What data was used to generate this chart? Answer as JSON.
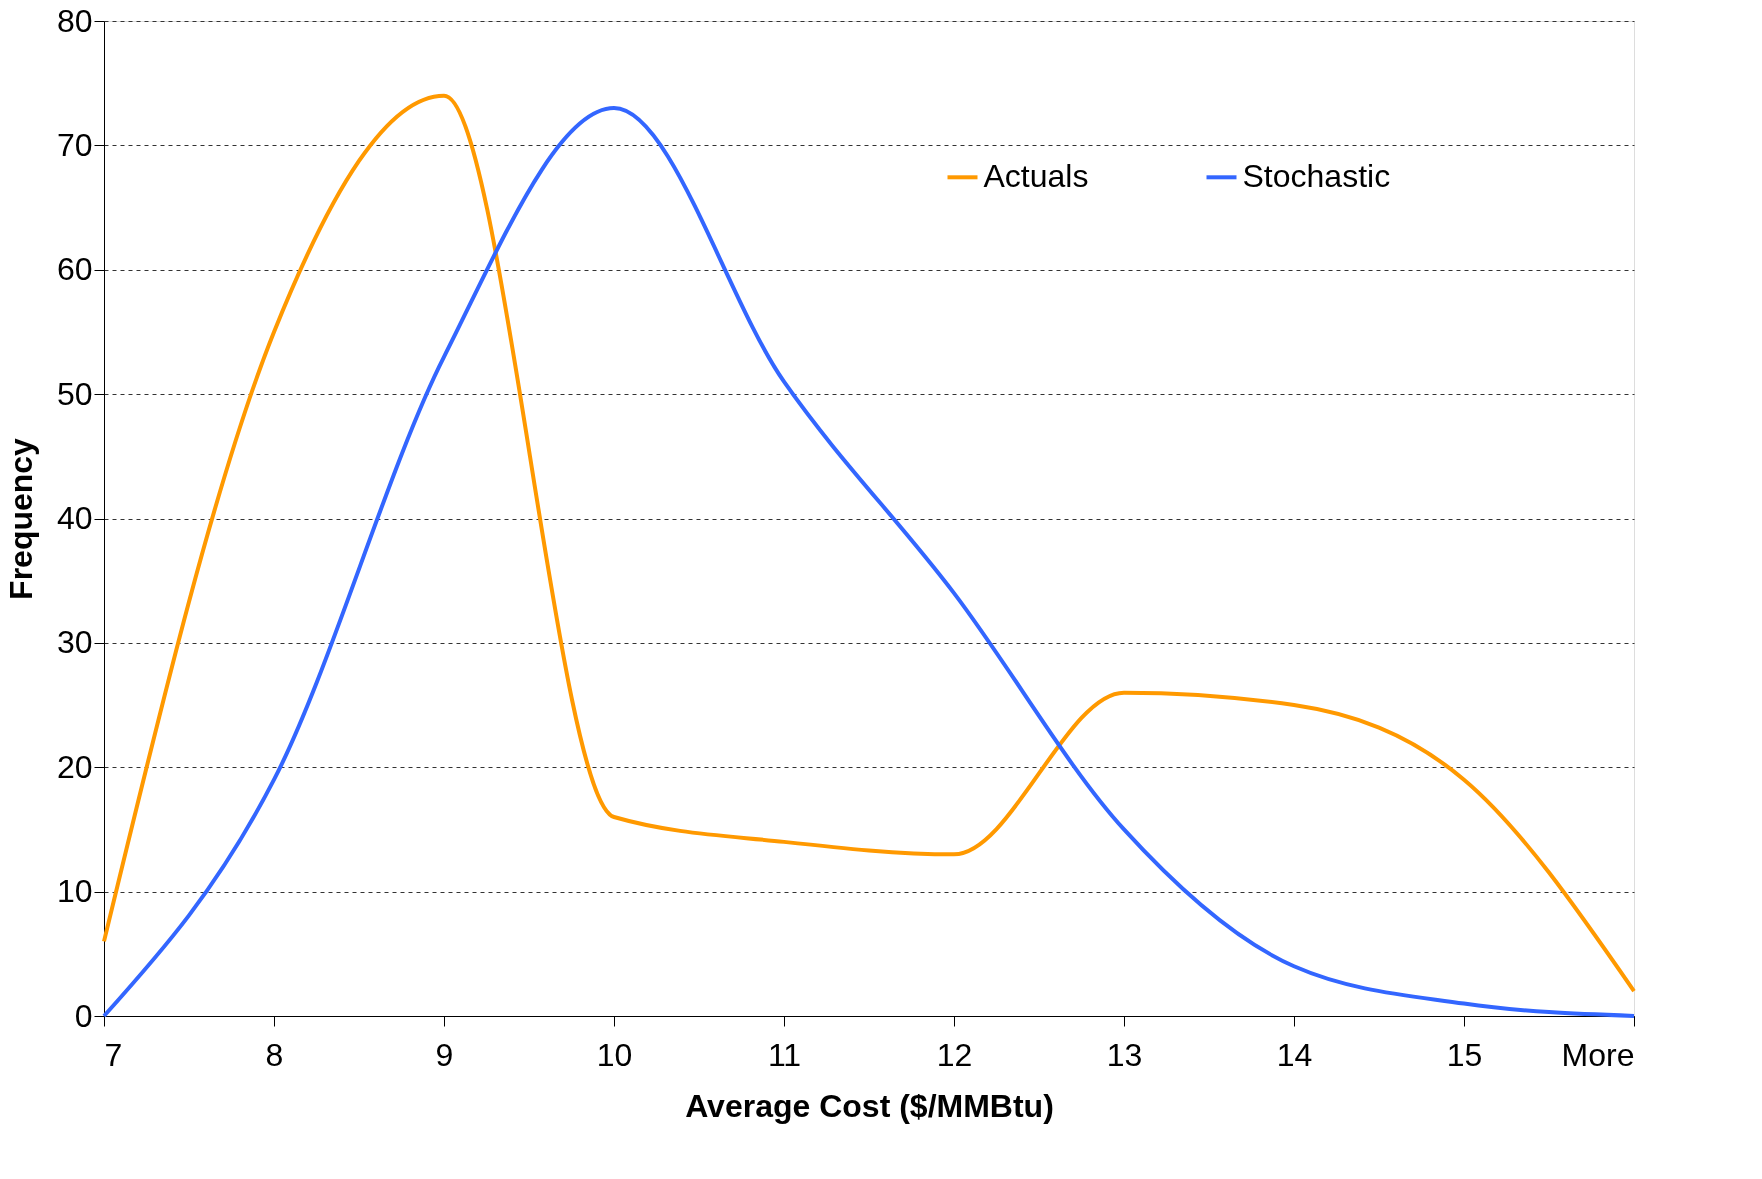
{
  "chart_data": {
    "type": "line",
    "xlabel": "Average Cost ($/MMBtu)",
    "ylabel": "Frequency",
    "categories": [
      "7",
      "8",
      "9",
      "10",
      "11",
      "12",
      "13",
      "14",
      "15",
      "More"
    ],
    "series": [
      {
        "name": "Actuals",
        "color": "#ff9900",
        "values": [
          6,
          55,
          74,
          16,
          14,
          13,
          26,
          25,
          19,
          2
        ]
      },
      {
        "name": "Stochastic",
        "color": "#3366ff",
        "values": [
          0,
          19,
          53,
          73,
          51,
          34,
          15,
          4,
          1,
          0
        ]
      }
    ],
    "ylim": [
      0,
      80
    ],
    "yticks": [
      0,
      10,
      20,
      30,
      40,
      50,
      60,
      70,
      80
    ],
    "grid": "y",
    "legend": "top right",
    "marker": "none",
    "line_style": "solid"
  }
}
